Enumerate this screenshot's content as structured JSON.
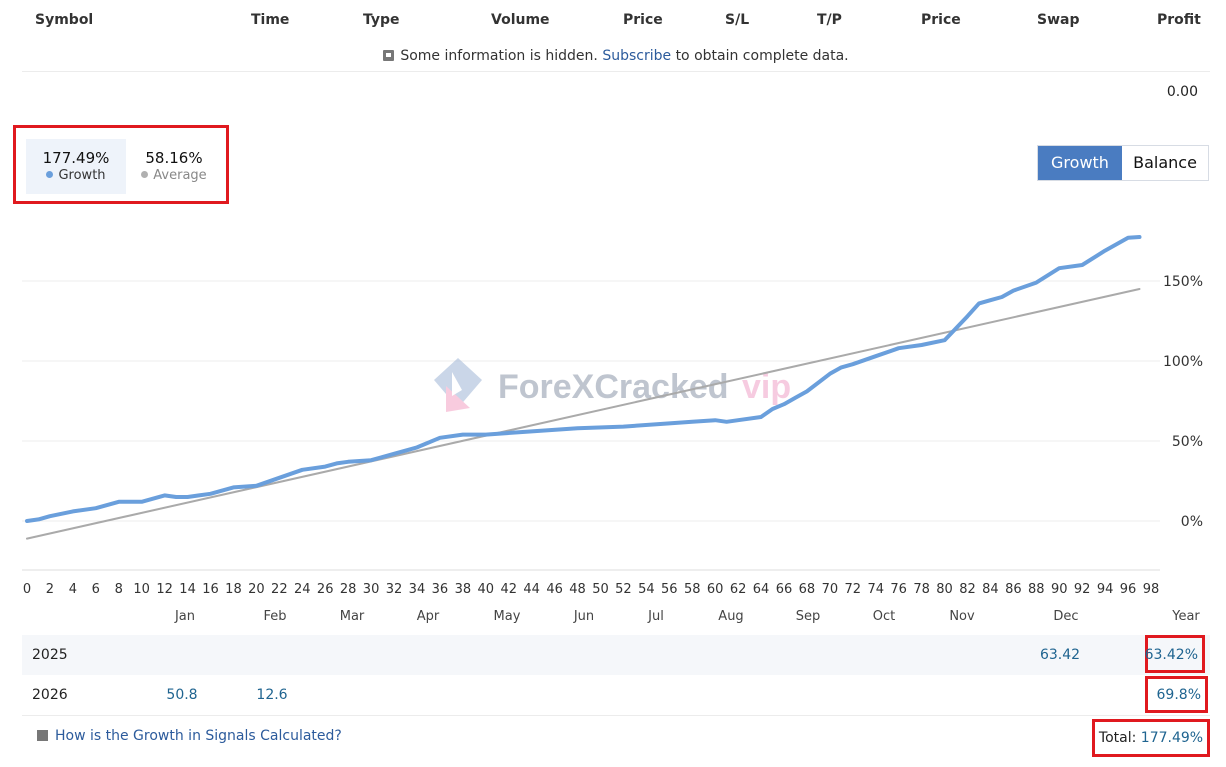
{
  "columns": [
    "Symbol",
    "Time",
    "Type",
    "Volume",
    "Price",
    "S/L",
    "T/P",
    "Price",
    "Swap",
    "Profit"
  ],
  "notice": {
    "text_before": "Some information is hidden.",
    "link": "Subscribe",
    "text_after": "to obtain complete data."
  },
  "total_profit": "0.00",
  "stats": {
    "growth_value": "177.49%",
    "growth_label": "Growth",
    "average_value": "58.16%",
    "average_label": "Average"
  },
  "toggle": {
    "growth": "Growth",
    "balance": "Balance"
  },
  "watermark": "ForeXCracked vip",
  "chart_data": {
    "type": "line",
    "x_ticks": [
      0,
      2,
      4,
      6,
      8,
      10,
      12,
      14,
      16,
      18,
      20,
      22,
      24,
      26,
      28,
      30,
      32,
      34,
      36,
      38,
      40,
      42,
      44,
      46,
      48,
      50,
      52,
      54,
      56,
      58,
      60,
      62,
      64,
      66,
      68,
      70,
      72,
      74,
      76,
      78,
      80,
      82,
      84,
      86,
      88,
      90,
      92,
      94,
      96,
      98
    ],
    "y_ticks": [
      "0%",
      "50%",
      "100%",
      "150%"
    ],
    "ylim": [
      -30,
      200
    ],
    "xlim": [
      0,
      98
    ],
    "grid": true,
    "series": [
      {
        "name": "Growth",
        "color": "#6a9fdc",
        "x": [
          0,
          1,
          2,
          4,
          6,
          8,
          10,
          12,
          13,
          14,
          15,
          16,
          18,
          20,
          22,
          24,
          26,
          27,
          28,
          30,
          32,
          34,
          36,
          38,
          40,
          44,
          48,
          52,
          56,
          58,
          60,
          61,
          62,
          64,
          65,
          66,
          67,
          68,
          70,
          71,
          72,
          74,
          76,
          78,
          80,
          82,
          83,
          84,
          85,
          86,
          88,
          90,
          92,
          94,
          96,
          97
        ],
        "y": [
          0,
          1,
          3,
          6,
          8,
          12,
          12,
          16,
          15,
          15,
          16,
          17,
          21,
          22,
          27,
          32,
          34,
          36,
          37,
          38,
          42,
          46,
          52,
          54,
          54,
          56,
          58,
          59,
          61,
          62,
          63,
          62,
          63,
          65,
          70,
          73,
          77,
          81,
          92,
          96,
          98,
          103,
          108,
          110,
          113,
          128,
          136,
          138,
          140,
          144,
          149,
          158,
          160,
          169,
          177,
          177.49
        ]
      },
      {
        "name": "Average",
        "color": "#aaaaaa",
        "x": [
          0,
          97
        ],
        "y": [
          -11,
          145
        ]
      }
    ]
  },
  "months": [
    "Jan",
    "Feb",
    "Mar",
    "Apr",
    "May",
    "Jun",
    "Jul",
    "Aug",
    "Sep",
    "Oct",
    "Nov",
    "Dec",
    "Year"
  ],
  "years": [
    {
      "year": "2025",
      "dec": "63.42",
      "total": "63.42%"
    },
    {
      "year": "2026",
      "jan": "50.8",
      "feb": "12.6",
      "total": "69.8%"
    }
  ],
  "footer": {
    "link": "How is the Growth in Signals Calculated?",
    "total_label": "Total:",
    "total_value": "177.49%"
  },
  "colors": {
    "accent": "#4a7cc1",
    "highlight": "#e0191f",
    "link": "#2c5b9c",
    "value": "#1f6490"
  }
}
